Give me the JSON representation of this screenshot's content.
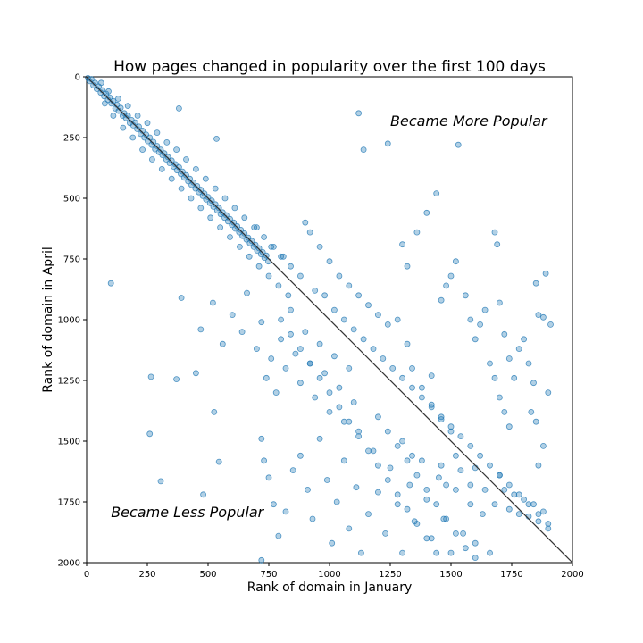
{
  "chart_data": {
    "type": "scatter",
    "title": "How pages changed in popularity over the first 100 days",
    "xlabel": "Rank of domain in January",
    "ylabel": "Rank of domain in April",
    "xlim": [
      0,
      2000
    ],
    "ylim": [
      0,
      2000
    ],
    "y_inverted": true,
    "xticks": [
      0,
      250,
      500,
      750,
      1000,
      1250,
      1500,
      1750,
      2000
    ],
    "yticks": [
      0,
      250,
      500,
      750,
      1000,
      1250,
      1500,
      1750,
      2000
    ],
    "grid": false,
    "point_color": "#1f77b4",
    "diagonal_line": {
      "from": [
        0,
        0
      ],
      "to": [
        2000,
        2000
      ],
      "color": "#333333"
    },
    "annotations": [
      {
        "text": "Became More Popular",
        "x": 1250,
        "y": 180
      },
      {
        "text": "Became Less Popular",
        "x": 100,
        "y": 1790
      }
    ],
    "points": [
      [
        5,
        5
      ],
      [
        12,
        18
      ],
      [
        20,
        10
      ],
      [
        28,
        35
      ],
      [
        35,
        25
      ],
      [
        42,
        50
      ],
      [
        50,
        40
      ],
      [
        58,
        65
      ],
      [
        65,
        55
      ],
      [
        72,
        80
      ],
      [
        80,
        70
      ],
      [
        88,
        95
      ],
      [
        95,
        85
      ],
      [
        102,
        110
      ],
      [
        110,
        100
      ],
      [
        118,
        130
      ],
      [
        125,
        115
      ],
      [
        132,
        140
      ],
      [
        140,
        128
      ],
      [
        148,
        160
      ],
      [
        155,
        150
      ],
      [
        162,
        170
      ],
      [
        170,
        160
      ],
      [
        178,
        190
      ],
      [
        185,
        178
      ],
      [
        192,
        200
      ],
      [
        200,
        188
      ],
      [
        208,
        215
      ],
      [
        215,
        205
      ],
      [
        222,
        235
      ],
      [
        230,
        222
      ],
      [
        238,
        250
      ],
      [
        245,
        238
      ],
      [
        252,
        265
      ],
      [
        260,
        250
      ],
      [
        268,
        280
      ],
      [
        275,
        268
      ],
      [
        282,
        298
      ],
      [
        290,
        285
      ],
      [
        298,
        310
      ],
      [
        305,
        300
      ],
      [
        312,
        322
      ],
      [
        320,
        315
      ],
      [
        328,
        340
      ],
      [
        335,
        330
      ],
      [
        342,
        355
      ],
      [
        350,
        345
      ],
      [
        358,
        370
      ],
      [
        365,
        360
      ],
      [
        372,
        385
      ],
      [
        380,
        372
      ],
      [
        388,
        400
      ],
      [
        395,
        390
      ],
      [
        402,
        415
      ],
      [
        410,
        405
      ],
      [
        418,
        430
      ],
      [
        425,
        420
      ],
      [
        432,
        445
      ],
      [
        440,
        435
      ],
      [
        448,
        460
      ],
      [
        455,
        450
      ],
      [
        462,
        475
      ],
      [
        470,
        465
      ],
      [
        478,
        490
      ],
      [
        485,
        480
      ],
      [
        492,
        505
      ],
      [
        500,
        495
      ],
      [
        508,
        520
      ],
      [
        515,
        510
      ],
      [
        522,
        535
      ],
      [
        530,
        525
      ],
      [
        538,
        550
      ],
      [
        545,
        540
      ],
      [
        552,
        565
      ],
      [
        560,
        558
      ],
      [
        568,
        580
      ],
      [
        575,
        570
      ],
      [
        582,
        595
      ],
      [
        590,
        585
      ],
      [
        598,
        610
      ],
      [
        605,
        600
      ],
      [
        612,
        625
      ],
      [
        620,
        615
      ],
      [
        628,
        640
      ],
      [
        635,
        630
      ],
      [
        642,
        655
      ],
      [
        650,
        645
      ],
      [
        658,
        670
      ],
      [
        665,
        662
      ],
      [
        672,
        685
      ],
      [
        680,
        676
      ],
      [
        688,
        700
      ],
      [
        695,
        692
      ],
      [
        702,
        715
      ],
      [
        710,
        706
      ],
      [
        718,
        730
      ],
      [
        725,
        722
      ],
      [
        732,
        745
      ],
      [
        740,
        736
      ],
      [
        748,
        760
      ],
      [
        60,
        25
      ],
      [
        75,
        110
      ],
      [
        90,
        60
      ],
      [
        110,
        160
      ],
      [
        130,
        90
      ],
      [
        150,
        210
      ],
      [
        170,
        120
      ],
      [
        190,
        250
      ],
      [
        210,
        160
      ],
      [
        230,
        300
      ],
      [
        250,
        190
      ],
      [
        270,
        340
      ],
      [
        290,
        230
      ],
      [
        310,
        380
      ],
      [
        330,
        270
      ],
      [
        350,
        420
      ],
      [
        370,
        300
      ],
      [
        390,
        460
      ],
      [
        410,
        340
      ],
      [
        430,
        500
      ],
      [
        450,
        380
      ],
      [
        470,
        540
      ],
      [
        490,
        420
      ],
      [
        510,
        580
      ],
      [
        530,
        460
      ],
      [
        550,
        620
      ],
      [
        570,
        500
      ],
      [
        590,
        660
      ],
      [
        610,
        540
      ],
      [
        630,
        700
      ],
      [
        650,
        580
      ],
      [
        670,
        740
      ],
      [
        690,
        620
      ],
      [
        710,
        780
      ],
      [
        730,
        660
      ],
      [
        750,
        820
      ],
      [
        770,
        700
      ],
      [
        790,
        860
      ],
      [
        810,
        740
      ],
      [
        830,
        900
      ],
      [
        100,
        850
      ],
      [
        265,
        1235
      ],
      [
        260,
        1470
      ],
      [
        305,
        1665
      ],
      [
        370,
        1245
      ],
      [
        380,
        130
      ],
      [
        390,
        910
      ],
      [
        450,
        1220
      ],
      [
        480,
        1720
      ],
      [
        525,
        1380
      ],
      [
        535,
        255
      ],
      [
        545,
        1585
      ],
      [
        470,
        1040
      ],
      [
        520,
        930
      ],
      [
        560,
        1100
      ],
      [
        600,
        980
      ],
      [
        640,
        1050
      ],
      [
        660,
        890
      ],
      [
        700,
        1120
      ],
      [
        720,
        1010
      ],
      [
        740,
        1240
      ],
      [
        760,
        1160
      ],
      [
        780,
        1300
      ],
      [
        800,
        1080
      ],
      [
        820,
        1200
      ],
      [
        840,
        960
      ],
      [
        860,
        1140
      ],
      [
        880,
        1260
      ],
      [
        900,
        1050
      ],
      [
        920,
        1180
      ],
      [
        940,
        1320
      ],
      [
        960,
        1100
      ],
      [
        980,
        1220
      ],
      [
        1000,
        1380
      ],
      [
        1020,
        1150
      ],
      [
        1040,
        1280
      ],
      [
        1060,
        1420
      ],
      [
        1080,
        1200
      ],
      [
        1100,
        1340
      ],
      [
        1120,
        1460
      ],
      [
        720,
        1490
      ],
      [
        730,
        1580
      ],
      [
        750,
        1650
      ],
      [
        770,
        1760
      ],
      [
        790,
        1890
      ],
      [
        720,
        1990
      ],
      [
        820,
        1790
      ],
      [
        850,
        1620
      ],
      [
        880,
        1560
      ],
      [
        910,
        1700
      ],
      [
        930,
        1820
      ],
      [
        960,
        1490
      ],
      [
        990,
        1660
      ],
      [
        1010,
        1920
      ],
      [
        1030,
        1750
      ],
      [
        1060,
        1580
      ],
      [
        1080,
        1860
      ],
      [
        1110,
        1690
      ],
      [
        1130,
        1960
      ],
      [
        1160,
        1800
      ],
      [
        1180,
        1540
      ],
      [
        1200,
        1710
      ],
      [
        1230,
        1880
      ],
      [
        1250,
        1610
      ],
      [
        1280,
        1760
      ],
      [
        1300,
        1960
      ],
      [
        1330,
        1680
      ],
      [
        1350,
        1830
      ],
      [
        1380,
        1580
      ],
      [
        1400,
        1740
      ],
      [
        1420,
        1900
      ],
      [
        1450,
        1650
      ],
      [
        1470,
        1820
      ],
      [
        1500,
        1960
      ],
      [
        1520,
        1700
      ],
      [
        1550,
        1880
      ],
      [
        1580,
        1760
      ],
      [
        1600,
        1920
      ],
      [
        1630,
        1800
      ],
      [
        1660,
        1960
      ],
      [
        1120,
        150
      ],
      [
        1140,
        300
      ],
      [
        1240,
        275
      ],
      [
        1280,
        1000
      ],
      [
        1320,
        1100
      ],
      [
        1340,
        1200
      ],
      [
        1380,
        1280
      ],
      [
        1420,
        1350
      ],
      [
        1460,
        1410
      ],
      [
        1500,
        1460
      ],
      [
        1530,
        280
      ],
      [
        1460,
        1600
      ],
      [
        1480,
        1680
      ],
      [
        1520,
        1560
      ],
      [
        1540,
        1620
      ],
      [
        1580,
        1680
      ],
      [
        1600,
        1610
      ],
      [
        1640,
        1700
      ],
      [
        1680,
        1760
      ],
      [
        1700,
        1640
      ],
      [
        1720,
        1700
      ],
      [
        1740,
        1780
      ],
      [
        1760,
        1720
      ],
      [
        1780,
        1800
      ],
      [
        1800,
        1740
      ],
      [
        1820,
        1810
      ],
      [
        1840,
        1760
      ],
      [
        1860,
        1830
      ],
      [
        1880,
        1790
      ],
      [
        1900,
        1860
      ],
      [
        1850,
        850
      ],
      [
        1890,
        810
      ],
      [
        1910,
        1020
      ],
      [
        1860,
        980
      ],
      [
        1880,
        990
      ],
      [
        1900,
        1300
      ],
      [
        1880,
        1520
      ],
      [
        1860,
        1600
      ],
      [
        1850,
        1420
      ],
      [
        1830,
        1380
      ],
      [
        1680,
        640
      ],
      [
        1690,
        690
      ],
      [
        1700,
        930
      ],
      [
        1720,
        1060
      ],
      [
        1740,
        1160
      ],
      [
        1760,
        1240
      ],
      [
        1780,
        1120
      ],
      [
        1800,
        1080
      ],
      [
        1820,
        1180
      ],
      [
        1840,
        1260
      ],
      [
        1300,
        690
      ],
      [
        1320,
        780
      ],
      [
        1360,
        640
      ],
      [
        1400,
        560
      ],
      [
        1420,
        1230
      ],
      [
        1440,
        480
      ],
      [
        1460,
        920
      ],
      [
        1480,
        860
      ],
      [
        1500,
        820
      ],
      [
        1520,
        760
      ],
      [
        1560,
        900
      ],
      [
        1580,
        1000
      ],
      [
        1600,
        1080
      ],
      [
        1620,
        1020
      ],
      [
        1640,
        960
      ],
      [
        1660,
        1180
      ],
      [
        1680,
        1240
      ],
      [
        1700,
        1320
      ],
      [
        1720,
        1380
      ],
      [
        1740,
        1440
      ],
      [
        900,
        600
      ],
      [
        920,
        640
      ],
      [
        960,
        700
      ],
      [
        1000,
        760
      ],
      [
        1040,
        820
      ],
      [
        1080,
        860
      ],
      [
        1120,
        900
      ],
      [
        1160,
        940
      ],
      [
        1200,
        980
      ],
      [
        1240,
        1020
      ],
      [
        700,
        620
      ],
      [
        760,
        700
      ],
      [
        800,
        740
      ],
      [
        840,
        780
      ],
      [
        880,
        820
      ],
      [
        940,
        880
      ],
      [
        980,
        900
      ],
      [
        1020,
        960
      ],
      [
        1060,
        1000
      ],
      [
        1100,
        1040
      ],
      [
        1140,
        1080
      ],
      [
        1180,
        1120
      ],
      [
        1220,
        1160
      ],
      [
        1260,
        1200
      ],
      [
        1300,
        1240
      ],
      [
        1340,
        1280
      ],
      [
        1380,
        1320
      ],
      [
        1420,
        1360
      ],
      [
        1460,
        1400
      ],
      [
        1500,
        1440
      ],
      [
        1540,
        1480
      ],
      [
        1580,
        1520
      ],
      [
        1620,
        1560
      ],
      [
        1660,
        1600
      ],
      [
        1700,
        1640
      ],
      [
        1740,
        1680
      ],
      [
        1780,
        1720
      ],
      [
        1820,
        1760
      ],
      [
        1860,
        1800
      ],
      [
        1900,
        1840
      ],
      [
        800,
        1000
      ],
      [
        840,
        1060
      ],
      [
        880,
        1120
      ],
      [
        920,
        1180
      ],
      [
        960,
        1240
      ],
      [
        1000,
        1300
      ],
      [
        1040,
        1360
      ],
      [
        1080,
        1420
      ],
      [
        1120,
        1480
      ],
      [
        1160,
        1540
      ],
      [
        1200,
        1600
      ],
      [
        1240,
        1660
      ],
      [
        1280,
        1720
      ],
      [
        1320,
        1780
      ],
      [
        1360,
        1840
      ],
      [
        1400,
        1900
      ],
      [
        1440,
        1960
      ],
      [
        1200,
        1400
      ],
      [
        1240,
        1460
      ],
      [
        1280,
        1520
      ],
      [
        1320,
        1580
      ],
      [
        1360,
        1640
      ],
      [
        1400,
        1700
      ],
      [
        1440,
        1760
      ],
      [
        1480,
        1820
      ],
      [
        1520,
        1880
      ],
      [
        1560,
        1940
      ],
      [
        1600,
        1980
      ],
      [
        1300,
        1500
      ],
      [
        1340,
        1560
      ]
    ]
  }
}
